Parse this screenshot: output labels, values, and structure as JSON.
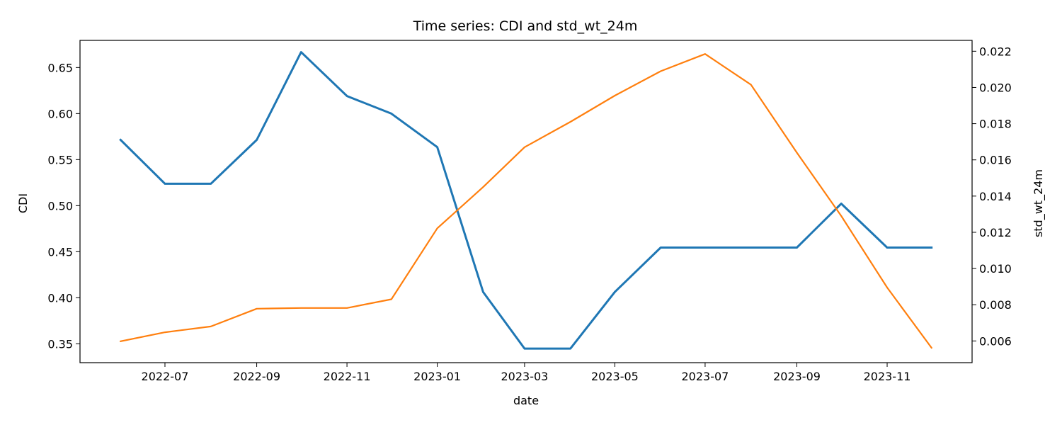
{
  "chart_data": {
    "type": "line",
    "title": "Time series: CDI and std_wt_24m",
    "xlabel": "date",
    "ylabel_left": "CDI",
    "ylabel_right": "std_wt_24m",
    "x": [
      "2022-06-01",
      "2022-07-01",
      "2022-08-01",
      "2022-09-01",
      "2022-10-01",
      "2022-11-01",
      "2022-12-01",
      "2023-01-01",
      "2023-02-01",
      "2023-03-01",
      "2023-04-01",
      "2023-05-01",
      "2023-06-01",
      "2023-07-01",
      "2023-08-01",
      "2023-09-01",
      "2023-10-01",
      "2023-11-01",
      "2023-12-01"
    ],
    "x_ticks": [
      "2022-07",
      "2022-09",
      "2022-11",
      "2023-01",
      "2023-03",
      "2023-05",
      "2023-07",
      "2023-09",
      "2023-11"
    ],
    "y_left_ticks": [
      "0.35",
      "0.40",
      "0.45",
      "0.50",
      "0.55",
      "0.60",
      "0.65"
    ],
    "y_right_ticks": [
      "0.006",
      "0.008",
      "0.010",
      "0.012",
      "0.014",
      "0.016",
      "0.018",
      "0.020",
      "0.022"
    ],
    "ylim_left": [
      0.3295,
      0.6795
    ],
    "ylim_right": [
      0.0048,
      0.0226
    ],
    "grid": false,
    "legend": "none",
    "series": [
      {
        "axis": "left",
        "color": "#1f77b4",
        "values": [
          0.5714,
          0.5238,
          0.5238,
          0.5714,
          0.6667,
          0.619,
          0.6,
          0.5636,
          0.4063,
          0.3448,
          0.3448,
          0.4063,
          0.4545,
          0.4545,
          0.4545,
          0.4545,
          0.5022,
          0.4545,
          0.4545
        ]
      },
      {
        "axis": "right",
        "color": "#ff7f0e",
        "values": [
          0.00598,
          0.00648,
          0.0068,
          0.00778,
          0.00782,
          0.00782,
          0.0083,
          0.01222,
          0.0145,
          0.0167,
          0.0181,
          0.01955,
          0.0209,
          0.02185,
          0.02015,
          0.0164,
          0.0129,
          0.00895,
          0.00562
        ]
      }
    ]
  }
}
